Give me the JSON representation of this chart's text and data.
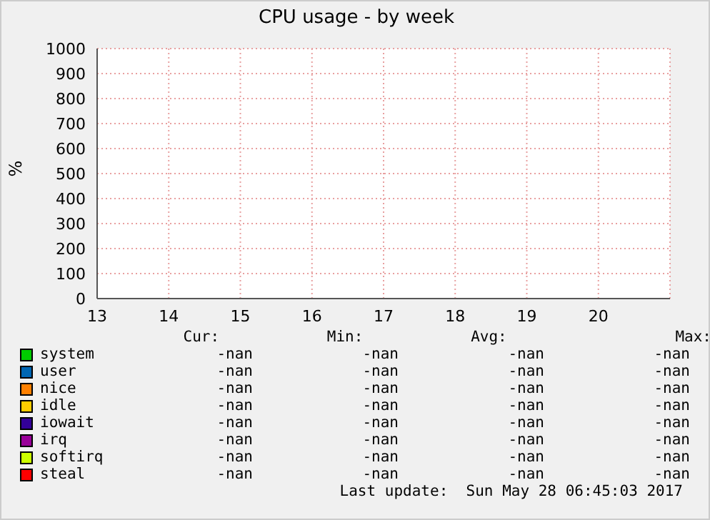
{
  "chart_data": {
    "type": "line",
    "title": "CPU usage - by week",
    "ylabel": "%",
    "categories": [
      "13",
      "14",
      "15",
      "16",
      "17",
      "18",
      "19",
      "20"
    ],
    "ylim": [
      0,
      1000
    ],
    "yticks": [
      0,
      100,
      200,
      300,
      400,
      500,
      600,
      700,
      800,
      900,
      1000
    ],
    "grid": true,
    "legend": "bottom",
    "annotations": [
      "Cur:",
      "Min:",
      "Avg:",
      "Max:",
      "-nan",
      "-nan",
      "-nan",
      "-nan",
      "-nan",
      "-nan",
      "-nan",
      "-nan",
      "-nan",
      "-nan",
      "-nan",
      "-nan",
      "-nan",
      "-nan",
      "-nan",
      "-nan",
      "-nan",
      "-nan",
      "-nan",
      "-nan",
      "-nan",
      "-nan",
      "-nan",
      "-nan",
      "-nan",
      "-nan",
      "-nan",
      "-nan",
      "-nan",
      "-nan",
      "-nan",
      "-nan",
      "Last update:  Sun May 28 06:45:03 2017"
    ],
    "series": [
      {
        "name": "system",
        "color": "#00cc00",
        "values": [
          null,
          null,
          null,
          null,
          null,
          null,
          null,
          null
        ]
      },
      {
        "name": "user",
        "color": "#0066b3",
        "values": [
          null,
          null,
          null,
          null,
          null,
          null,
          null,
          null
        ]
      },
      {
        "name": "nice",
        "color": "#ff8000",
        "values": [
          null,
          null,
          null,
          null,
          null,
          null,
          null,
          null
        ]
      },
      {
        "name": "idle",
        "color": "#ffcc00",
        "values": [
          null,
          null,
          null,
          null,
          null,
          null,
          null,
          null
        ]
      },
      {
        "name": "iowait",
        "color": "#330099",
        "values": [
          null,
          null,
          null,
          null,
          null,
          null,
          null,
          null
        ]
      },
      {
        "name": "irq",
        "color": "#990099",
        "values": [
          null,
          null,
          null,
          null,
          null,
          null,
          null,
          null
        ]
      },
      {
        "name": "softirq",
        "color": "#ccff00",
        "values": [
          null,
          null,
          null,
          null,
          null,
          null,
          null,
          null
        ]
      },
      {
        "name": "steal",
        "color": "#ff0000",
        "values": [
          null,
          null,
          null,
          null,
          null,
          null,
          null,
          null
        ]
      }
    ]
  }
}
